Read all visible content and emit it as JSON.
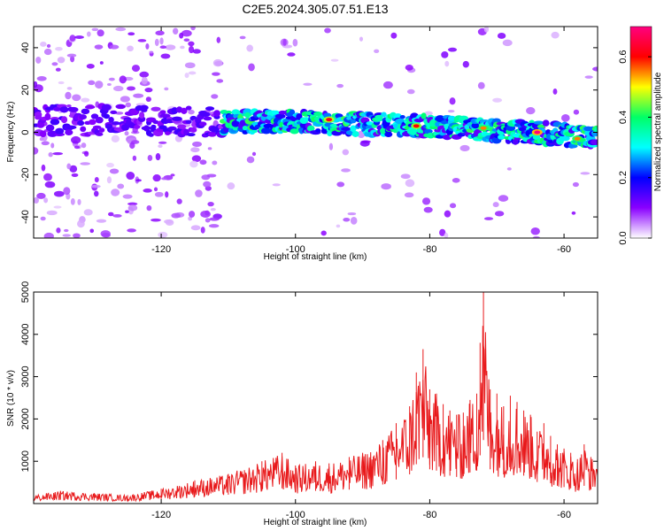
{
  "chart_data": [
    {
      "type": "heatmap",
      "title": "C2E5.2024.305.07.51.E13",
      "xlabel": "Height of straight line (km)",
      "ylabel": "Frequency (Hz)",
      "xlim": [
        -139,
        -55
      ],
      "ylim": [
        -50,
        50
      ],
      "xticks": [
        -120,
        -100,
        -80,
        -60
      ],
      "yticks": [
        -40,
        -20,
        0,
        20,
        40
      ],
      "colorbar": {
        "label": "Normalized spectral amplitude",
        "range": [
          0,
          0.7
        ],
        "ticks": [
          0.0,
          0.2,
          0.4,
          0.6
        ],
        "colors": [
          "#ffffff",
          "#8a00ff",
          "#0000ff",
          "#00ffff",
          "#00ff66",
          "#ffff00",
          "#ff0000",
          "#ff0080"
        ]
      },
      "band_center": {
        "x": [
          -139,
          -111,
          -100,
          -90,
          -80,
          -70,
          -60,
          -55
        ],
        "y": [
          6,
          5,
          5,
          4,
          3,
          1,
          -1,
          -3
        ]
      },
      "band_peaks": [
        {
          "x": -95,
          "y": 6,
          "amp": 0.62
        },
        {
          "x": -82,
          "y": 3,
          "amp": 0.6
        },
        {
          "x": -72,
          "y": 2,
          "amp": 0.55
        },
        {
          "x": -64,
          "y": 0,
          "amp": 0.7
        },
        {
          "x": -58,
          "y": -3,
          "amp": 0.55
        }
      ],
      "grid": false
    },
    {
      "type": "line",
      "title": "",
      "xlabel": "Height of straight line (km)",
      "ylabel": "SNR (10 * v/v)",
      "xlim": [
        -139,
        -55
      ],
      "ylim": [
        0,
        5000
      ],
      "xticks": [
        -120,
        -100,
        -80,
        -60
      ],
      "yticks": [
        1000,
        2000,
        3000,
        4000,
        5000
      ],
      "series": [
        {
          "color": "#e8191b",
          "x": [
            -139,
            -135,
            -130,
            -125,
            -120,
            -115,
            -110,
            -105,
            -102,
            -100,
            -97,
            -95,
            -92,
            -90,
            -87,
            -85,
            -83,
            -82,
            -81,
            -80,
            -79,
            -78,
            -77,
            -76,
            -75,
            -74,
            -73,
            -72.5,
            -72,
            -71,
            -70,
            -69,
            -68,
            -67,
            -66,
            -65,
            -64,
            -63,
            -62,
            -61,
            -60,
            -59,
            -58,
            -57,
            -56,
            -55
          ],
          "y": [
            200,
            300,
            250,
            200,
            350,
            550,
            700,
            1000,
            1200,
            900,
            1000,
            950,
            1100,
            1200,
            1500,
            1900,
            2300,
            3100,
            3650,
            2700,
            2600,
            2350,
            2200,
            2100,
            2150,
            2450,
            2600,
            3800,
            5000,
            2700,
            2600,
            2300,
            2550,
            2400,
            2200,
            2100,
            1700,
            1900,
            1600,
            1400,
            1300,
            1200,
            1050,
            1400,
            1100,
            1100
          ]
        }
      ],
      "grid": false
    }
  ]
}
